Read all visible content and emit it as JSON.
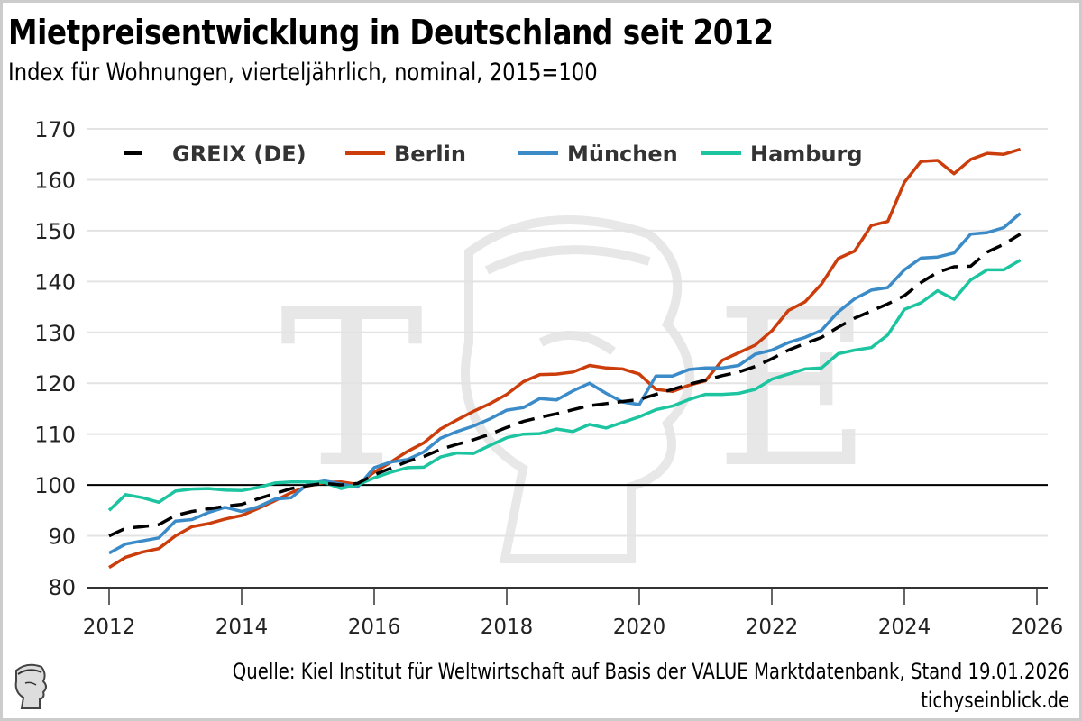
{
  "header": {
    "title": "Mietpreisentwicklung in Deutschland seit 2012",
    "subtitle": "Index für Wohnungen, vierteljährlich, nominal, 2015=100"
  },
  "footer": {
    "source": "Quelle: Kiel Institut für Weltwirtschaft auf Basis der VALUE Marktdatenbank, Stand 19.01.2026",
    "site": "tichyseinblick.de",
    "logo_icon": "hermes-head-icon"
  },
  "watermark": {
    "letters": [
      "T",
      "E"
    ],
    "icon": "hermes-head-icon"
  },
  "chart_data": {
    "type": "line",
    "title": "Mietpreisentwicklung in Deutschland seit 2012",
    "subtitle": "Index für Wohnungen, vierteljährlich, nominal, 2015=100",
    "xlabel": "",
    "ylabel": "",
    "x_start": 2012.0,
    "x_step": 0.25,
    "xlim": [
      2012,
      2026
    ],
    "ylim": [
      80,
      170
    ],
    "xticks": [
      "2012",
      "2014",
      "2016",
      "2018",
      "2020",
      "2022",
      "2024",
      "2026"
    ],
    "xtick_values": [
      2012,
      2014,
      2016,
      2018,
      2020,
      2022,
      2024,
      2026
    ],
    "yticks": [
      "80",
      "90",
      "100",
      "110",
      "120",
      "130",
      "140",
      "150",
      "160",
      "170"
    ],
    "ytick_values": [
      80,
      90,
      100,
      110,
      120,
      130,
      140,
      150,
      160,
      170
    ],
    "grid": true,
    "reference_line": 100,
    "legend_position": "top-left",
    "series": [
      {
        "name": "GREIX (DE)",
        "color": "#000000",
        "dashed": true,
        "values": [
          90.0,
          91.5,
          91.8,
          92.2,
          94.0,
          94.8,
          95.3,
          95.8,
          96.2,
          97.3,
          98.3,
          99.3,
          99.9,
          100.3,
          100.0,
          100.3,
          102.0,
          103.3,
          104.6,
          105.6,
          107.0,
          108.0,
          108.9,
          110.0,
          111.3,
          112.5,
          113.3,
          114.0,
          114.8,
          115.6,
          116.0,
          116.4,
          116.8,
          117.8,
          118.8,
          119.8,
          120.6,
          121.5,
          122.2,
          123.3,
          124.8,
          126.5,
          127.8,
          129.0,
          131.0,
          132.8,
          134.2,
          135.6,
          137.2,
          139.8,
          141.8,
          142.9,
          143.0,
          145.8,
          147.3,
          149.3
        ]
      },
      {
        "name": "Berlin",
        "color": "#cc3d0c",
        "dashed": false,
        "values": [
          83.8,
          85.8,
          86.8,
          87.5,
          90.0,
          91.8,
          92.4,
          93.3,
          94.0,
          95.4,
          96.9,
          98.5,
          99.8,
          100.5,
          100.6,
          100.1,
          102.5,
          104.5,
          106.6,
          108.3,
          111.0,
          112.8,
          114.5,
          116.0,
          117.8,
          120.3,
          121.7,
          121.8,
          122.2,
          123.5,
          123.0,
          122.8,
          121.8,
          118.8,
          118.4,
          119.6,
          120.5,
          124.5,
          126.0,
          127.5,
          130.3,
          134.3,
          136.0,
          139.5,
          144.5,
          146.0,
          151.0,
          151.8,
          159.5,
          163.6,
          163.8,
          161.2,
          164.0,
          165.2,
          165.0,
          166.0
        ]
      },
      {
        "name": "München",
        "color": "#3a8bc8",
        "dashed": false,
        "values": [
          86.6,
          88.4,
          89.0,
          89.6,
          92.9,
          93.2,
          94.6,
          95.6,
          94.8,
          95.7,
          97.2,
          97.5,
          100.2,
          100.8,
          100.2,
          99.6,
          103.4,
          104.5,
          105.0,
          106.5,
          109.2,
          110.5,
          111.6,
          113.0,
          114.7,
          115.2,
          117.0,
          116.7,
          118.5,
          120.0,
          118.0,
          116.3,
          115.8,
          121.4,
          121.4,
          122.7,
          123.0,
          123.0,
          123.5,
          125.7,
          126.5,
          128.0,
          129.0,
          130.4,
          134.0,
          136.6,
          138.3,
          138.8,
          142.3,
          144.6,
          144.8,
          145.6,
          149.3,
          149.6,
          150.6,
          153.4
        ]
      },
      {
        "name": "Hamburg",
        "color": "#1dc4a0",
        "dashed": false,
        "values": [
          95.0,
          98.1,
          97.5,
          96.6,
          98.8,
          99.2,
          99.3,
          99.0,
          98.9,
          99.5,
          100.4,
          100.6,
          100.6,
          100.5,
          99.3,
          100.0,
          101.4,
          102.5,
          103.4,
          103.5,
          105.5,
          106.3,
          106.2,
          107.8,
          109.3,
          110.0,
          110.1,
          111.0,
          110.5,
          111.9,
          111.2,
          112.3,
          113.4,
          114.8,
          115.5,
          116.8,
          117.8,
          117.8,
          118.0,
          118.8,
          120.8,
          121.8,
          122.8,
          123.0,
          125.8,
          126.5,
          127.0,
          129.5,
          134.5,
          135.8,
          138.2,
          136.5,
          140.3,
          142.3,
          142.3,
          144.2
        ]
      }
    ]
  }
}
